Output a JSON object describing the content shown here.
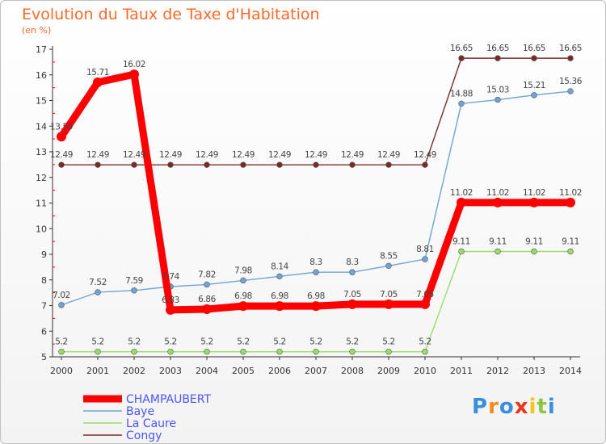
{
  "chart_data": {
    "type": "line",
    "title": "Evolution du Taux de Taxe d'Habitation",
    "subtitle": "(en %)",
    "x": [
      "2000",
      "2001",
      "2002",
      "2003",
      "2004",
      "2005",
      "2006",
      "2007",
      "2008",
      "2009",
      "2010",
      "2011",
      "2012",
      "2013",
      "2014"
    ],
    "ylim": [
      5,
      17
    ],
    "yticks": [
      5,
      6,
      7,
      8,
      9,
      10,
      11,
      12,
      13,
      14,
      15,
      16,
      17
    ],
    "grid": false,
    "legend_position": "bottom-left",
    "series": [
      {
        "name": "CHAMPAUBERT",
        "color": "#ff0000",
        "values": [
          13.59,
          15.71,
          16.02,
          6.83,
          6.86,
          6.98,
          6.98,
          6.98,
          7.05,
          7.05,
          7.05,
          11.02,
          11.02,
          11.02,
          11.02
        ],
        "labels": [
          "13.59",
          "15.71",
          "16.02",
          "6.83",
          "6.86",
          "6.98",
          "6.98",
          "6.98",
          "7.05",
          "7.05",
          "7.05",
          "11.02",
          "11.02",
          "11.02",
          "11.02"
        ]
      },
      {
        "name": "Baye",
        "color": "#6fa4d6",
        "values": [
          7.02,
          7.52,
          7.59,
          7.74,
          7.82,
          7.98,
          8.14,
          8.3,
          8.3,
          8.55,
          8.81,
          14.88,
          15.03,
          15.21,
          15.36
        ],
        "labels": [
          "7.02",
          "7.52",
          "7.59",
          "7.74",
          "7.82",
          "7.98",
          "8.14",
          "8.3",
          "8.3",
          "8.55",
          "8.81",
          "14.88",
          "15.03",
          "15.21",
          "15.36"
        ]
      },
      {
        "name": "La Caure",
        "color": "#99dd66",
        "values": [
          5.2,
          5.2,
          5.2,
          5.2,
          5.2,
          5.2,
          5.2,
          5.2,
          5.2,
          5.2,
          5.2,
          9.11,
          9.11,
          9.11,
          9.11
        ],
        "labels": [
          "5.2",
          "5.2",
          "5.2",
          "5.2",
          "5.2",
          "5.2",
          "5.2",
          "5.2",
          "5.2",
          "5.2",
          "5.2",
          "9.11",
          "9.11",
          "9.11",
          "9.11"
        ]
      },
      {
        "name": "Congy",
        "color": "#7a2a2a",
        "values": [
          12.49,
          12.49,
          12.49,
          12.49,
          12.49,
          12.49,
          12.49,
          12.49,
          12.49,
          12.49,
          12.49,
          16.65,
          16.65,
          16.65,
          16.65
        ],
        "labels": [
          "12.49",
          "12.49",
          "12.49",
          "12.49",
          "12.49",
          "12.49",
          "12.49",
          "12.49",
          "12.49",
          "12.49",
          "12.49",
          "16.65",
          "16.65",
          "16.65",
          "16.65"
        ]
      }
    ]
  },
  "branding": {
    "logo_text": "Proxiti",
    "logo_colors": [
      "#3a8ede",
      "#f28a1c",
      "#3a8ede",
      "#e8341c",
      "#f7c21a",
      "#8cc63f",
      "#3a8ede"
    ]
  }
}
